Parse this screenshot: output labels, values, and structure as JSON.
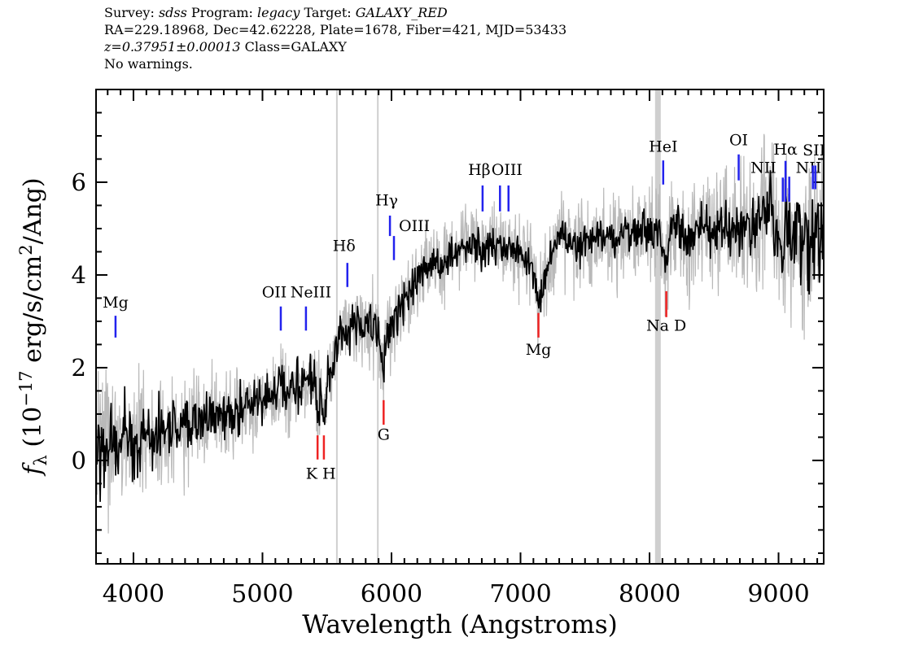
{
  "header": {
    "line1": [
      {
        "t": "Survey: "
      },
      {
        "t": "sdss",
        "it": true
      },
      {
        "t": " Program: "
      },
      {
        "t": "legacy",
        "it": true
      },
      {
        "t": " Target: "
      },
      {
        "t": "GALAXY_RED",
        "it": true
      }
    ],
    "line2": [
      {
        "t": "RA=229.18968, Dec=42.62228, Plate=1678, Fiber=421, MJD=53433"
      }
    ],
    "line3": [
      {
        "t": "z=0.37951±0.00013",
        "it": true
      },
      {
        "t": " Class=GALAXY"
      }
    ],
    "line4": [
      {
        "t": "No warnings."
      }
    ]
  },
  "chart_data": {
    "type": "line",
    "xlabel": "Wavelength (Angstroms)",
    "ylabel_plain": "f_lambda (10^-17 erg/s/cm^2/Ang)",
    "ylabel_parts": [
      {
        "t": "f",
        "it": true
      },
      {
        "t": "λ",
        "pos": "sub"
      },
      {
        "t": " (10"
      },
      {
        "t": "−17",
        "pos": "sup"
      },
      {
        "t": " erg/s/cm"
      },
      {
        "t": "2",
        "pos": "sup"
      },
      {
        "t": "/Ang)"
      }
    ],
    "xlim": [
      3710,
      9350
    ],
    "ylim": [
      -2.23,
      8.0
    ],
    "xticks_major": [
      4000,
      5000,
      6000,
      7000,
      8000,
      9000
    ],
    "xtick_labels": [
      "4000",
      "5000",
      "6000",
      "7000",
      "8000",
      "9000"
    ],
    "xtick_minor_step": 100,
    "yticks_major": [
      0,
      2,
      4,
      6
    ],
    "ytick_labels": [
      "0",
      "2",
      "4",
      "6"
    ],
    "ytick_minor_step": 0.5,
    "grid": false,
    "legend": "none",
    "series": [
      {
        "name": "unsmoothed-flux-noise",
        "color": "#b9b9b9"
      },
      {
        "name": "smoothed-flux",
        "color": "#000000"
      }
    ],
    "continuum_points": [
      [
        3715,
        0.3
      ],
      [
        3800,
        0.32
      ],
      [
        3900,
        0.42
      ],
      [
        4000,
        0.48
      ],
      [
        4100,
        0.52
      ],
      [
        4200,
        0.58
      ],
      [
        4300,
        0.62
      ],
      [
        4400,
        0.72
      ],
      [
        4500,
        0.82
      ],
      [
        4600,
        0.92
      ],
      [
        4700,
        1.0
      ],
      [
        4800,
        1.08
      ],
      [
        4900,
        1.18
      ],
      [
        5000,
        1.28
      ],
      [
        5100,
        1.38
      ],
      [
        5142,
        1.75
      ],
      [
        5180,
        1.5
      ],
      [
        5260,
        1.58
      ],
      [
        5340,
        1.7
      ],
      [
        5400,
        1.72
      ],
      [
        5427,
        0.95
      ],
      [
        5452,
        1.45
      ],
      [
        5476,
        1.05
      ],
      [
        5510,
        1.8
      ],
      [
        5545,
        2.1
      ],
      [
        5590,
        2.6
      ],
      [
        5630,
        2.85
      ],
      [
        5658,
        2.6
      ],
      [
        5690,
        2.95
      ],
      [
        5730,
        2.9
      ],
      [
        5770,
        3.0
      ],
      [
        5810,
        2.95
      ],
      [
        5850,
        2.95
      ],
      [
        5900,
        2.75
      ],
      [
        5939,
        1.75
      ],
      [
        5965,
        2.8
      ],
      [
        5988,
        2.75
      ],
      [
        6010,
        3.0
      ],
      [
        6050,
        3.2
      ],
      [
        6100,
        3.45
      ],
      [
        6150,
        3.65
      ],
      [
        6200,
        3.95
      ],
      [
        6250,
        4.15
      ],
      [
        6300,
        4.35
      ],
      [
        6350,
        4.15
      ],
      [
        6400,
        4.3
      ],
      [
        6450,
        4.45
      ],
      [
        6500,
        4.5
      ],
      [
        6550,
        4.6
      ],
      [
        6600,
        4.75
      ],
      [
        6650,
        4.65
      ],
      [
        6706,
        4.45
      ],
      [
        6750,
        4.7
      ],
      [
        6800,
        4.6
      ],
      [
        6850,
        4.55
      ],
      [
        6907,
        4.6
      ],
      [
        6950,
        4.5
      ],
      [
        7000,
        4.4
      ],
      [
        7050,
        4.3
      ],
      [
        7100,
        3.95
      ],
      [
        7139,
        3.3
      ],
      [
        7180,
        3.85
      ],
      [
        7240,
        4.35
      ],
      [
        7300,
        4.9
      ],
      [
        7360,
        4.75
      ],
      [
        7420,
        4.7
      ],
      [
        7480,
        4.72
      ],
      [
        7540,
        4.78
      ],
      [
        7600,
        4.85
      ],
      [
        7660,
        4.78
      ],
      [
        7720,
        4.85
      ],
      [
        7780,
        4.9
      ],
      [
        7840,
        4.88
      ],
      [
        7900,
        4.95
      ],
      [
        7960,
        4.92
      ],
      [
        8020,
        4.95
      ],
      [
        8080,
        5.05
      ],
      [
        8130,
        4.15
      ],
      [
        8170,
        5.05
      ],
      [
        8210,
        5.25
      ],
      [
        8250,
        5.0
      ],
      [
        8300,
        4.6
      ],
      [
        8350,
        4.9
      ],
      [
        8400,
        5.0
      ],
      [
        8450,
        5.05
      ],
      [
        8500,
        5.0
      ],
      [
        8550,
        5.05
      ],
      [
        8600,
        5.0
      ],
      [
        8650,
        5.05
      ],
      [
        8700,
        5.08
      ],
      [
        8750,
        5.02
      ],
      [
        8800,
        5.0
      ],
      [
        8850,
        5.15
      ],
      [
        8900,
        5.35
      ],
      [
        8940,
        5.85
      ],
      [
        8970,
        4.75
      ],
      [
        9000,
        5.05
      ],
      [
        9030,
        3.9
      ],
      [
        9060,
        5.25
      ],
      [
        9100,
        4.5
      ],
      [
        9140,
        5.15
      ],
      [
        9180,
        4.65
      ],
      [
        9220,
        4.95
      ],
      [
        9260,
        4.85
      ],
      [
        9300,
        4.9
      ],
      [
        9345,
        4.55
      ]
    ],
    "noise_sigma_black": [
      [
        3715,
        0.75
      ],
      [
        3900,
        0.6
      ],
      [
        4100,
        0.48
      ],
      [
        4400,
        0.42
      ],
      [
        4800,
        0.38
      ],
      [
        5200,
        0.36
      ],
      [
        5600,
        0.34
      ],
      [
        6000,
        0.33
      ],
      [
        6400,
        0.3
      ],
      [
        6800,
        0.29
      ],
      [
        7200,
        0.27
      ],
      [
        7600,
        0.27
      ],
      [
        8000,
        0.29
      ],
      [
        8300,
        0.33
      ],
      [
        8600,
        0.36
      ],
      [
        8850,
        0.45
      ],
      [
        9000,
        0.55
      ],
      [
        9150,
        0.65
      ],
      [
        9345,
        0.8
      ]
    ],
    "noise_sigma_gray": [
      [
        3715,
        1.15
      ],
      [
        3900,
        1.0
      ],
      [
        4100,
        0.8
      ],
      [
        4400,
        0.7
      ],
      [
        4800,
        0.65
      ],
      [
        5200,
        0.6
      ],
      [
        5600,
        0.58
      ],
      [
        6000,
        0.56
      ],
      [
        6400,
        0.55
      ],
      [
        6800,
        0.55
      ],
      [
        7200,
        0.6
      ],
      [
        7600,
        0.65
      ],
      [
        8000,
        0.7
      ],
      [
        8300,
        0.8
      ],
      [
        8600,
        0.85
      ],
      [
        8850,
        1.0
      ],
      [
        9000,
        1.15
      ],
      [
        9150,
        1.3
      ],
      [
        9345,
        1.5
      ]
    ],
    "emission_lines": [
      {
        "label": "Mg",
        "ticks": [
          3861
        ],
        "tick_flux": [
          2.65,
          3.12
        ],
        "label_x": 3861,
        "label_flux": 3.3,
        "anchor": "middle",
        "dx": 0
      },
      {
        "label": "OII",
        "ticks": [
          5142
        ],
        "tick_flux": [
          2.8,
          3.32
        ],
        "label_x": 5142,
        "label_flux": 3.52,
        "anchor": "middle",
        "dx": -8
      },
      {
        "label": "NeIII",
        "ticks": [
          5337
        ],
        "tick_flux": [
          2.8,
          3.32
        ],
        "label_x": 5337,
        "label_flux": 3.52,
        "anchor": "middle",
        "dx": 6
      },
      {
        "label": "Hδ",
        "ticks": [
          5658
        ],
        "tick_flux": [
          3.74,
          4.26
        ],
        "label_x": 5658,
        "label_flux": 4.52,
        "anchor": "middle",
        "dx": -4
      },
      {
        "label": "Hγ",
        "ticks": [
          5988
        ],
        "tick_flux": [
          4.84,
          5.28
        ],
        "label_x": 5988,
        "label_flux": 5.5,
        "anchor": "middle",
        "dx": -4
      },
      {
        "label": "OIII",
        "ticks": [
          6019
        ],
        "tick_flux": [
          4.32,
          4.84
        ],
        "label_x": 6019,
        "label_flux": 4.95,
        "anchor": "start",
        "dx": 6
      },
      {
        "label": "Hβ",
        "ticks": [
          6706
        ],
        "tick_flux": [
          5.37,
          5.93
        ],
        "label_x": 6706,
        "label_flux": 6.16,
        "anchor": "middle",
        "dx": -4
      },
      {
        "label": "OIII",
        "ticks": [
          6841,
          6907
        ],
        "tick_flux": [
          5.37,
          5.93
        ],
        "label_x": 6895,
        "label_flux": 6.16,
        "anchor": "middle",
        "dx": 0
      },
      {
        "label": "HeI",
        "ticks": [
          8106
        ],
        "tick_flux": [
          5.95,
          6.47
        ],
        "label_x": 8106,
        "label_flux": 6.66,
        "anchor": "middle",
        "dx": 0
      },
      {
        "label": "OI",
        "ticks": [
          8691
        ],
        "tick_flux": [
          6.04,
          6.6
        ],
        "label_x": 8691,
        "label_flux": 6.8,
        "anchor": "middle",
        "dx": 0
      },
      {
        "label": "NII",
        "ticks": [
          9033
        ],
        "tick_flux": [
          5.58,
          6.1
        ],
        "label_x": 9033,
        "label_flux": 6.2,
        "anchor": "end",
        "dx": -8
      },
      {
        "label": "Hα",
        "ticks": [
          9054
        ],
        "tick_flux": [
          5.58,
          6.46
        ],
        "label_x": 9054,
        "label_flux": 6.6,
        "anchor": "middle",
        "dx": 0
      },
      {
        "label": "NII",
        "ticks": [
          9083
        ],
        "tick_flux": [
          5.58,
          6.12
        ],
        "label_x": 9083,
        "label_flux": 6.2,
        "anchor": "start",
        "dx": 8
      },
      {
        "label": "SII",
        "ticks": [
          9266,
          9285
        ],
        "tick_flux": [
          5.85,
          6.36
        ],
        "label_x": 9275,
        "label_flux": 6.58,
        "anchor": "middle",
        "dx": 0
      }
    ],
    "absorption_lines": [
      {
        "label": "K H",
        "ticks": [
          5427,
          5476
        ],
        "tick_flux": [
          0.02,
          0.54
        ],
        "label_x": 5452,
        "label_flux": -0.4,
        "anchor": "middle",
        "dx": 0
      },
      {
        "label": "G",
        "ticks": [
          5939
        ],
        "tick_flux": [
          0.77,
          1.3
        ],
        "label_x": 5939,
        "label_flux": 0.45,
        "anchor": "middle",
        "dx": 0
      },
      {
        "label": "Mg",
        "ticks": [
          7139
        ],
        "tick_flux": [
          2.65,
          3.18
        ],
        "label_x": 7139,
        "label_flux": 2.28,
        "anchor": "middle",
        "dx": 0
      },
      {
        "label": "Na D",
        "ticks": [
          8130
        ],
        "tick_flux": [
          3.09,
          3.65
        ],
        "label_x": 8130,
        "label_flux": 2.8,
        "anchor": "middle",
        "dx": 0
      }
    ],
    "sky_lines": [
      {
        "wavelength": 5577,
        "width": 2
      },
      {
        "wavelength": 5894,
        "width": 2
      },
      {
        "wavelength": 8065,
        "width": 7
      }
    ],
    "colors": {
      "flux": "#000000",
      "noise": "#b9b9b9",
      "emission": "#2222ee",
      "absorption": "#ee2222",
      "sky": "#cfcfcf",
      "frame": "#000000"
    }
  }
}
